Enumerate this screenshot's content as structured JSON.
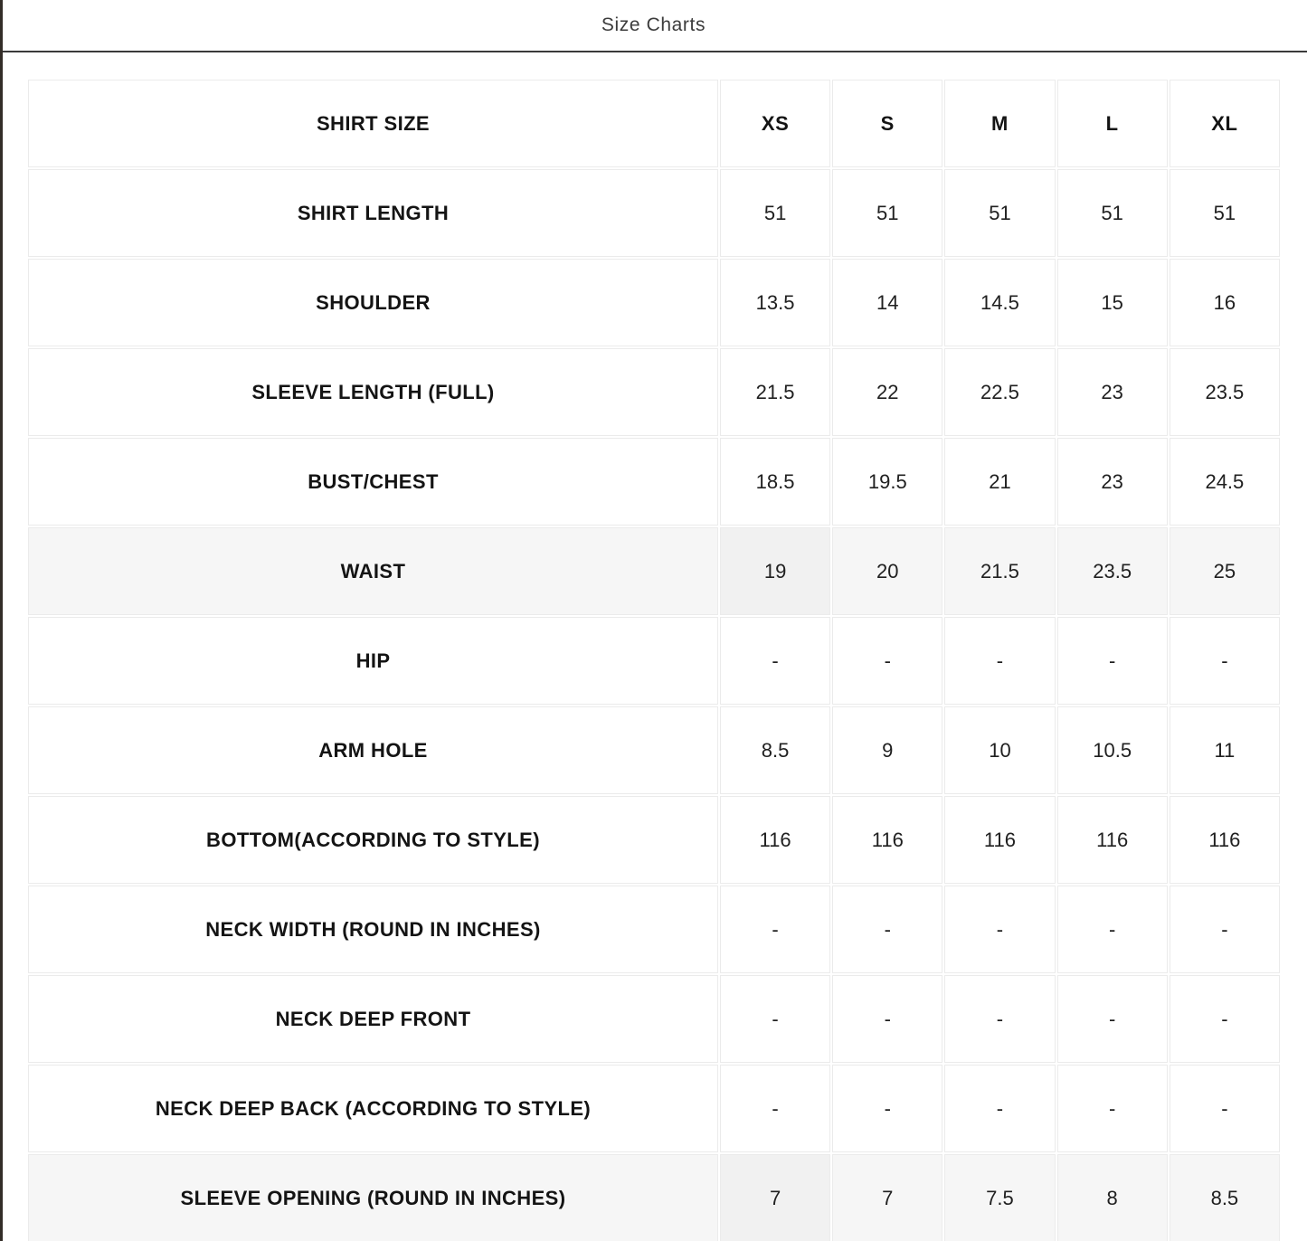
{
  "header": {
    "title": "Size Charts"
  },
  "colors": {
    "divider": "#3a3a3a",
    "edge_line": "#332d28",
    "cell_border": "#ebebeb",
    "xs_column_bg": "#f3f3f3",
    "highlight_row_bg": "#f6f6f6",
    "text": "#141414"
  },
  "chart_data": {
    "type": "table",
    "title": "Size Charts",
    "columns": [
      "SHIRT SIZE",
      "XS",
      "S",
      "M",
      "L",
      "XL"
    ],
    "rows": [
      {
        "label": "SHIRT LENGTH",
        "values": [
          "51",
          "51",
          "51",
          "51",
          "51"
        ],
        "highlight": false
      },
      {
        "label": "SHOULDER",
        "values": [
          "13.5",
          "14",
          "14.5",
          "15",
          "16"
        ],
        "highlight": false
      },
      {
        "label": "SLEEVE LENGTH (FULL)",
        "values": [
          "21.5",
          "22",
          "22.5",
          "23",
          "23.5"
        ],
        "highlight": false
      },
      {
        "label": "BUST/CHEST",
        "values": [
          "18.5",
          "19.5",
          "21",
          "23",
          "24.5"
        ],
        "highlight": false
      },
      {
        "label": "WAIST",
        "values": [
          "19",
          "20",
          "21.5",
          "23.5",
          "25"
        ],
        "highlight": true
      },
      {
        "label": "HIP",
        "values": [
          "-",
          "-",
          "-",
          "-",
          "-"
        ],
        "highlight": false
      },
      {
        "label": "ARM HOLE",
        "values": [
          "8.5",
          "9",
          "10",
          "10.5",
          "11"
        ],
        "highlight": false
      },
      {
        "label": "BOTTOM(ACCORDING TO STYLE)",
        "values": [
          "116",
          "116",
          "116",
          "116",
          "116"
        ],
        "highlight": false
      },
      {
        "label": "NECK WIDTH (ROUND IN INCHES)",
        "values": [
          "-",
          "-",
          "-",
          "-",
          "-"
        ],
        "highlight": false
      },
      {
        "label": "NECK DEEP FRONT",
        "values": [
          "-",
          "-",
          "-",
          "-",
          "-"
        ],
        "highlight": false
      },
      {
        "label": "NECK DEEP BACK (ACCORDING TO STYLE)",
        "values": [
          "-",
          "-",
          "-",
          "-",
          "-"
        ],
        "highlight": false
      },
      {
        "label": "SLEEVE OPENING (ROUND IN INCHES)",
        "values": [
          "7",
          "7",
          "7.5",
          "8",
          "8.5"
        ],
        "highlight": true
      }
    ]
  }
}
